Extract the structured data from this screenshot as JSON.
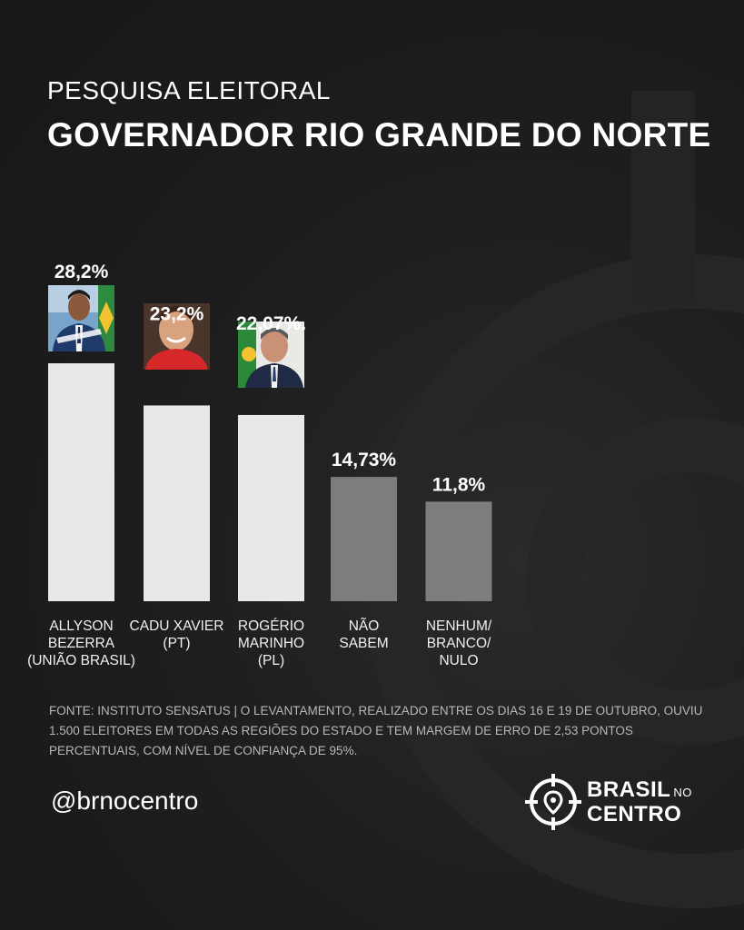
{
  "header": {
    "overline": "PESQUISA ELEITORAL",
    "title": "GOVERNADOR RIO GRANDE DO NORTE"
  },
  "chart_data": {
    "type": "bar",
    "title": "GOVERNADOR RIO GRANDE DO NORTE",
    "categories": [
      "ALLYSON BEZERRA (UNIÃO BRASIL)",
      "CADU XAVIER (PT)",
      "ROGÉRIO MARINHO (PL)",
      "NÃO SABEM",
      "NENHUM/ BRANCO/ NULO"
    ],
    "values": [
      28.2,
      23.2,
      22.07,
      14.73,
      11.8
    ],
    "value_labels": [
      "28,2%",
      "23,2%",
      "22,07%.",
      "14,73%",
      "11,8%"
    ],
    "bar_colors": [
      "#e8e8e8",
      "#e8e8e8",
      "#e8e8e8",
      "#7d7d7d",
      "#7d7d7d"
    ],
    "xlabel": "",
    "ylabel": "",
    "ylim": [
      0,
      36
    ],
    "grid": false
  },
  "labels": [
    [
      "ALLYSON",
      "BEZERRA",
      "(UNIÃO BRASIL)"
    ],
    [
      "CADU XAVIER",
      "(PT)"
    ],
    [
      "ROGÉRIO",
      "MARINHO",
      "(PL)"
    ],
    [
      "NÃO",
      "SABEM"
    ],
    [
      "NENHUM/",
      "BRANCO/",
      "NULO"
    ]
  ],
  "photos": [
    "candidate-photo-allyson",
    "candidate-photo-cadu",
    "candidate-photo-rogerio"
  ],
  "footer": {
    "source": "FONTE: INSTITUTO SENSATUS | O LEVANTAMENTO, REALIZADO ENTRE OS DIAS 16 E 19 DE OUTUBRO, OUVIU 1.500 ELEITORES EM TODAS AS REGIÕES DO ESTADO E TEM MARGEM DE ERRO DE 2,53 PONTOS PERCENTUAIS, COM NÍVEL DE CONFIANÇA DE 95%.",
    "handle": "@brnocentro",
    "logo_line1": "BRASIL",
    "logo_line1_small": "NO",
    "logo_line2": "CENTRO"
  },
  "colors": {
    "background": "#1e1e1e",
    "bar_candidate": "#e8e8e8",
    "bar_other": "#7d7d7d",
    "text": "#ffffff",
    "source_text": "#b8b8b8"
  }
}
